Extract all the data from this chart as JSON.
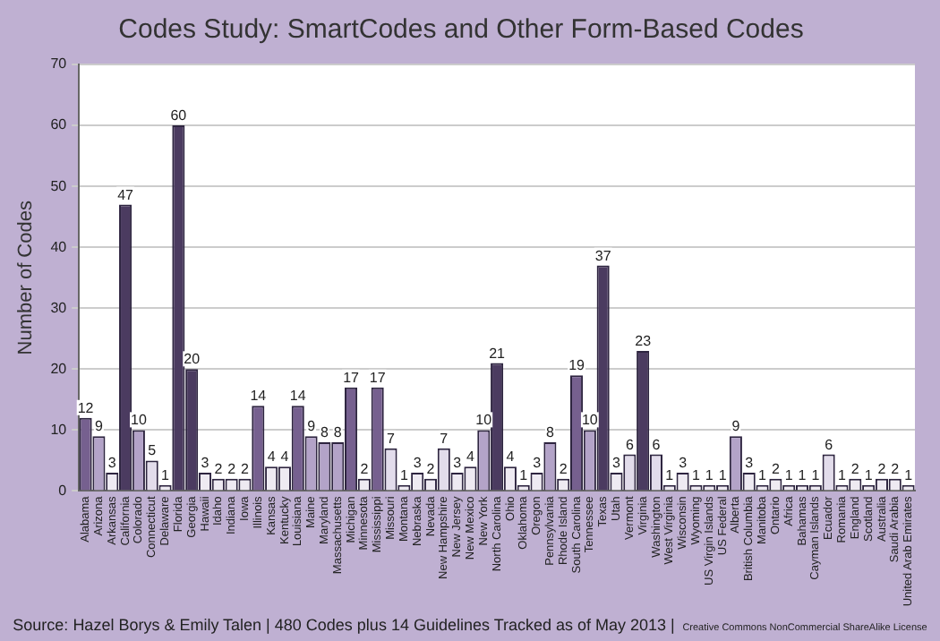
{
  "chart_data": {
    "type": "bar",
    "title": "Codes Study: SmartCodes and Other Form-Based Codes",
    "ylabel": "Number of Codes",
    "annotations": [
      "Source: Hazel Borys & Emily Talen | 480 Codes plus 14 Guidelines Tracked as of May 2013 |",
      "Creative Commons NonCommercial ShareAlike License"
    ],
    "categories": [
      "Alabama",
      "Arizona",
      "Arkansas",
      "California",
      "Colorado",
      "Connecticut",
      "Delaware",
      "Florida",
      "Georgia",
      "Hawaii",
      "Idaho",
      "Indiana",
      "Iowa",
      "Illinois",
      "Kansas",
      "Kentucky",
      "Louisiana",
      "Maine",
      "Maryland",
      "Massachusetts",
      "Michigan",
      "Minnesota",
      "Mississippi",
      "Missouri",
      "Montana",
      "Nebraska",
      "Nevada",
      "New Hampshire",
      "New Jersey",
      "New Mexico",
      "New York",
      "North Carolina",
      "Ohio",
      "Oklahoma",
      "Oregon",
      "Pennsylvania",
      "Rhode Island",
      "South Carolina",
      "Tennessee",
      "Texas",
      "Utah",
      "Vermont",
      "Virginia",
      "Washington",
      "West Virginia",
      "Wisconsin",
      "Wyoming",
      "US Virgin Islands",
      "US Federal",
      "Alberta",
      "British Columbia",
      "Manitoba",
      "Ontario",
      "Africa",
      "Bahamas",
      "Cayman Islands",
      "Ecuador",
      "Romania",
      "England",
      "Scotland",
      "Australia",
      "Saudi Arabia",
      "United Arab Emirates"
    ],
    "values": [
      12,
      9,
      3,
      47,
      10,
      5,
      1,
      60,
      20,
      3,
      2,
      2,
      2,
      14,
      4,
      4,
      14,
      9,
      8,
      8,
      17,
      2,
      17,
      7,
      1,
      3,
      2,
      7,
      3,
      4,
      10,
      21,
      4,
      1,
      3,
      8,
      2,
      19,
      10,
      37,
      3,
      6,
      23,
      6,
      1,
      3,
      1,
      1,
      1,
      9,
      3,
      1,
      2,
      1,
      1,
      1,
      6,
      1,
      2,
      1,
      2,
      2,
      1
    ],
    "colors": [
      "#76608f",
      "#b3a3c8",
      "#eeeaf2",
      "#4b3b60",
      "#b3a3c8",
      "#e2dceb",
      "#eeeaf2",
      "#4b3b60",
      "#4b3b60",
      "#eeeaf2",
      "#eeeaf2",
      "#eeeaf2",
      "#eeeaf2",
      "#76608f",
      "#eeeaf2",
      "#eeeaf2",
      "#76608f",
      "#b3a3c8",
      "#b3a3c8",
      "#b3a3c8",
      "#76608f",
      "#eeeaf2",
      "#76608f",
      "#e2dceb",
      "#eeeaf2",
      "#eeeaf2",
      "#eeeaf2",
      "#e2dceb",
      "#eeeaf2",
      "#eeeaf2",
      "#b3a3c8",
      "#4b3b60",
      "#eeeaf2",
      "#eeeaf2",
      "#eeeaf2",
      "#b3a3c8",
      "#eeeaf2",
      "#76608f",
      "#b3a3c8",
      "#4b3b60",
      "#eeeaf2",
      "#e2dceb",
      "#4b3b60",
      "#e2dceb",
      "#eeeaf2",
      "#eeeaf2",
      "#eeeaf2",
      "#eeeaf2",
      "#eeeaf2",
      "#b3a3c8",
      "#eeeaf2",
      "#eeeaf2",
      "#eeeaf2",
      "#eeeaf2",
      "#eeeaf2",
      "#eeeaf2",
      "#e2dceb",
      "#eeeaf2",
      "#eeeaf2",
      "#eeeaf2",
      "#eeeaf2",
      "#eeeaf2",
      "#eeeaf2"
    ],
    "ylim": [
      0,
      70
    ],
    "yticks": [
      0,
      10,
      20,
      30,
      40,
      50,
      60,
      70
    ],
    "grid": "y",
    "legend": false,
    "data_labels": true
  }
}
